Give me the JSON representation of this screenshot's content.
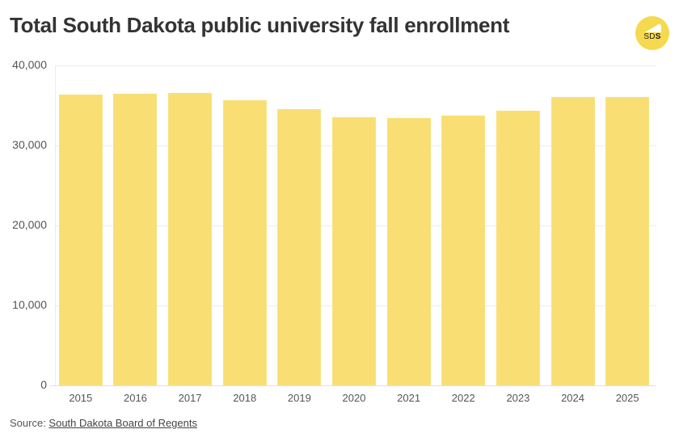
{
  "header": {
    "title": "Total South Dakota public university fall enrollment",
    "logo_text_light": "SD",
    "logo_text_bold": "S"
  },
  "footer": {
    "source_label": "Source: ",
    "source_link": "South Dakota Board of Regents"
  },
  "colors": {
    "bar": "#f8de73",
    "logo": "#f5d94e",
    "title": "#333333",
    "axis_text": "#555555",
    "grid": "#ececec"
  },
  "chart_data": {
    "type": "bar",
    "title": "Total South Dakota public university fall enrollment",
    "xlabel": "",
    "ylabel": "",
    "categories": [
      "2015",
      "2016",
      "2017",
      "2018",
      "2019",
      "2020",
      "2021",
      "2022",
      "2023",
      "2024",
      "2025"
    ],
    "values": [
      36400,
      36500,
      36600,
      35700,
      34500,
      33500,
      33400,
      33700,
      34300,
      36100,
      36100
    ],
    "ylim": [
      0,
      40000
    ],
    "yticks": [
      0,
      10000,
      20000,
      30000,
      40000
    ],
    "ytick_labels": [
      "0",
      "10,000",
      "20,000",
      "30,000",
      "40,000"
    ],
    "grid": true,
    "legend": null,
    "source": "South Dakota Board of Regents"
  }
}
